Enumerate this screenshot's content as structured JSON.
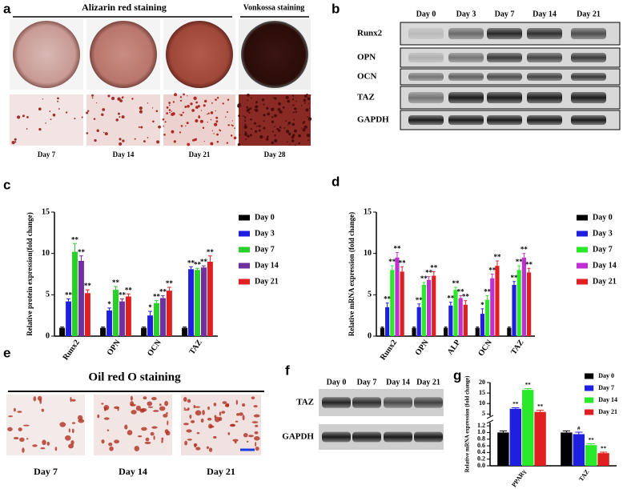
{
  "panels": {
    "a": {
      "letter": "a",
      "headers": [
        "Alizarin red staining",
        "Vonkossa staining"
      ],
      "days": [
        "Day 7",
        "Day 14",
        "Day 21",
        "Day 28"
      ]
    },
    "b": {
      "letter": "b",
      "lanes": [
        "Day 0",
        "Day 3",
        "Day 7",
        "Day 14",
        "Day 21"
      ],
      "proteins": [
        "Runx2",
        "OPN",
        "OCN",
        "TAZ",
        "GAPDH"
      ]
    },
    "c": {
      "letter": "c"
    },
    "d": {
      "letter": "d"
    },
    "e": {
      "letter": "e",
      "title": "Oil red O staining",
      "days": [
        "Day 7",
        "Day 14",
        "Day 21"
      ]
    },
    "f": {
      "letter": "f",
      "lanes": [
        "Day 0",
        "Day 7",
        "Day 14",
        "Day 21"
      ],
      "proteins": [
        "TAZ",
        "GAPDH"
      ]
    },
    "g": {
      "letter": "g"
    }
  },
  "chart_data": [
    {
      "type": "bar",
      "ylabel": "Relative protein expression(fold change)",
      "categories": [
        "Runx2",
        "OPN",
        "OCN",
        "TAZ"
      ],
      "ylim": [
        0,
        15
      ],
      "yticks": [
        0,
        5,
        10,
        15
      ],
      "series": [
        {
          "name": "Day 0",
          "color": "#000000",
          "values": [
            1,
            1,
            1,
            1
          ],
          "errors": [
            0.1,
            0.1,
            0.1,
            0.1
          ],
          "annotations": [
            null,
            null,
            null,
            null
          ]
        },
        {
          "name": "Day 3",
          "color": "#1f1fe0",
          "values": [
            4.2,
            3.1,
            2.5,
            8.1
          ],
          "errors": [
            0.3,
            0.3,
            0.5,
            0.3
          ],
          "annotations": [
            "**",
            "*",
            "*",
            "**"
          ]
        },
        {
          "name": "Day 7",
          "color": "#2ad02a",
          "values": [
            10.2,
            5.6,
            4.0,
            8.0
          ],
          "errors": [
            1.0,
            0.4,
            0.3,
            0.2
          ],
          "annotations": [
            "**",
            "**",
            "**",
            "**"
          ]
        },
        {
          "name": "Day 14",
          "color": "#7030a0",
          "values": [
            9.1,
            4.2,
            4.6,
            8.3
          ],
          "errors": [
            0.6,
            0.3,
            0.3,
            0.2
          ],
          "annotations": [
            "**",
            "**",
            "**",
            "**"
          ]
        },
        {
          "name": "Day 21",
          "color": "#e02020",
          "values": [
            5.2,
            4.8,
            5.5,
            9.0
          ],
          "errors": [
            0.4,
            0.3,
            0.4,
            0.7
          ],
          "annotations": [
            "**",
            "**",
            "**",
            "**"
          ]
        }
      ]
    },
    {
      "type": "bar",
      "ylabel": "Relative mRNA expression (fold change)",
      "categories": [
        "Runx2",
        "OPN",
        "ALP",
        "OCN",
        "TAZ"
      ],
      "ylim": [
        0,
        15
      ],
      "yticks": [
        0,
        5,
        10,
        15
      ],
      "series": [
        {
          "name": "Day 0",
          "color": "#000000",
          "values": [
            1,
            1,
            1,
            1,
            1
          ],
          "errors": [
            0.1,
            0.1,
            0.1,
            0.1,
            0.1
          ],
          "annotations": [
            null,
            null,
            null,
            null,
            null
          ]
        },
        {
          "name": "Day 3",
          "color": "#1f1fe0",
          "values": [
            3.5,
            3.5,
            3.7,
            2.7,
            6.2
          ],
          "errors": [
            0.5,
            0.4,
            0.4,
            0.6,
            0.4
          ],
          "annotations": [
            "**",
            "**",
            "**",
            "*",
            "**"
          ]
        },
        {
          "name": "Day 7",
          "color": "#2ae82a",
          "values": [
            8.0,
            6.2,
            5.6,
            4.4,
            8.0
          ],
          "errors": [
            0.5,
            0.3,
            0.3,
            0.5,
            0.5
          ],
          "annotations": [
            "**",
            "**",
            "**",
            "**",
            "**"
          ]
        },
        {
          "name": "Day 14",
          "color": "#c030d0",
          "values": [
            9.5,
            6.8,
            4.6,
            7.0,
            9.5
          ],
          "errors": [
            0.6,
            0.4,
            0.3,
            0.5,
            0.5
          ],
          "annotations": [
            "**",
            "**",
            "**",
            "**",
            "**"
          ]
        },
        {
          "name": "Day 21",
          "color": "#e02020",
          "values": [
            7.8,
            7.3,
            3.8,
            8.5,
            7.7
          ],
          "errors": [
            0.6,
            0.5,
            0.5,
            0.6,
            0.5
          ],
          "annotations": [
            "**",
            "**",
            "**",
            "**",
            "**"
          ]
        }
      ]
    },
    {
      "type": "bar",
      "ylabel": "Relative mRNA expression (fold change)",
      "categories": [
        "PPARγ",
        "TAZ"
      ],
      "ylim": [
        0,
        20
      ],
      "axis_break": [
        1.3,
        4
      ],
      "yticks": [
        {
          "value": 0,
          "label": "0.0"
        },
        0.2,
        0.4,
        0.6,
        0.8,
        {
          "value": 1,
          "label": "1.0"
        },
        1.2,
        5,
        10,
        15,
        20
      ],
      "series": [
        {
          "name": "Day 0",
          "color": "#000000",
          "values": [
            1,
            1
          ],
          "errors": [
            0.05,
            0.05
          ],
          "annotations": [
            null,
            null
          ]
        },
        {
          "name": "Day 7",
          "color": "#1f1fe0",
          "values": [
            7.5,
            0.95
          ],
          "errors": [
            0.5,
            0.06
          ],
          "annotations": [
            "**",
            "#"
          ]
        },
        {
          "name": "Day 14",
          "color": "#2ae82a",
          "values": [
            16.5,
            0.62
          ],
          "errors": [
            0.6,
            0.04
          ],
          "annotations": [
            "**",
            "**"
          ]
        },
        {
          "name": "Day 21",
          "color": "#e02020",
          "values": [
            6,
            0.38
          ],
          "errors": [
            0.8,
            0.03
          ],
          "annotations": [
            "**",
            "**"
          ]
        }
      ]
    }
  ]
}
